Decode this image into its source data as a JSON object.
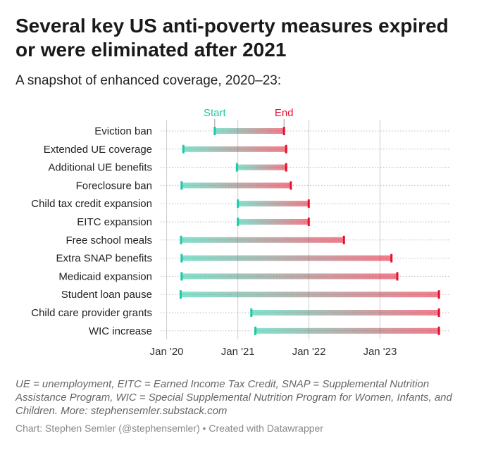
{
  "header": {
    "title": "Several key US anti-poverty measures expired or were eliminated after 2021",
    "subtitle": "A snapshot of enhanced coverage, 2020–23:"
  },
  "footer": {
    "notes": "UE = unemployment, EITC = Earned Income Tax Credit, SNAP = Supplemental Nutrition Assistance Program, WIC = Special Supplemental Nutrition Program for Women, Infants, and Children. More: stephensemler.substack.com",
    "credit": "Chart: Stephen Semler (@stephensemler) • Created with Datawrapper"
  },
  "colors": {
    "start": "#1dc9a4",
    "end": "#e8112d",
    "grid": "#cccccc",
    "dots": "#bbbbbb",
    "text": "#222222",
    "axis_text": "#333333"
  },
  "chart_data": {
    "type": "range",
    "series": [
      {
        "name": "Start",
        "color": "#1dc9a4"
      },
      {
        "name": "End",
        "color": "#e8112d"
      }
    ],
    "x_axis": {
      "type": "date",
      "range": [
        "2019-12-01",
        "2023-12-31"
      ],
      "ticks": [
        {
          "value": "2020-01-01",
          "label": "Jan '20"
        },
        {
          "value": "2021-01-01",
          "label": "Jan '21"
        },
        {
          "value": "2022-01-01",
          "label": "Jan '22"
        },
        {
          "value": "2023-01-01",
          "label": "Jan '23"
        }
      ]
    },
    "grid": true,
    "legend_placement": "above first row",
    "rows": [
      {
        "label": "Eviction ban",
        "start": "2020-09-04",
        "end": "2021-08-26"
      },
      {
        "label": "Extended UE coverage",
        "start": "2020-03-27",
        "end": "2021-09-06"
      },
      {
        "label": "Additional UE benefits",
        "start": "2020-12-27",
        "end": "2021-09-06"
      },
      {
        "label": "Foreclosure ban",
        "start": "2020-03-18",
        "end": "2021-09-30"
      },
      {
        "label": "Child tax credit expansion",
        "start": "2021-01-01",
        "end": "2021-12-31"
      },
      {
        "label": "EITC expansion",
        "start": "2021-01-01",
        "end": "2021-12-31"
      },
      {
        "label": "Free school meals",
        "start": "2020-03-15",
        "end": "2022-06-30"
      },
      {
        "label": "Extra SNAP benefits",
        "start": "2020-03-18",
        "end": "2023-03-01"
      },
      {
        "label": "Medicaid expansion",
        "start": "2020-03-18",
        "end": "2023-03-31"
      },
      {
        "label": "Student loan pause",
        "start": "2020-03-13",
        "end": "2023-10-31"
      },
      {
        "label": "Child care provider grants",
        "start": "2021-03-11",
        "end": "2023-10-31"
      },
      {
        "label": "WIC increase",
        "start": "2021-04-01",
        "end": "2023-10-31"
      }
    ]
  }
}
